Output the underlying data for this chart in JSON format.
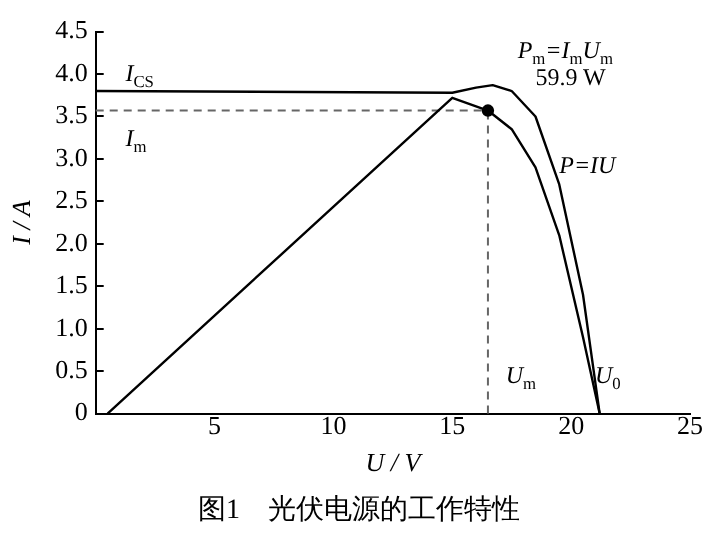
{
  "chart_data": {
    "type": "line",
    "title": "图1　光伏电源的工作特性",
    "xlabel": "U / V",
    "ylabel": "I / A",
    "xlim": [
      0,
      25
    ],
    "xticks": [
      5,
      10,
      15,
      20,
      25
    ],
    "ylim": [
      0,
      4.5
    ],
    "yticks": [
      0,
      0.5,
      {
        "value": 1,
        "label": "1.0"
      },
      1.5,
      {
        "value": 2,
        "label": "2.0"
      },
      2.5,
      {
        "value": 3,
        "label": "3.0"
      },
      3.5,
      {
        "value": 4,
        "label": "4.0"
      },
      4.5
    ],
    "grid": false,
    "legend": false,
    "marker": "none",
    "line_style": "solid",
    "series": [
      {
        "color": "#000000",
        "x": [
          0,
          15,
          16,
          16.7,
          17.5,
          18.5,
          19.5,
          20.5,
          21.2
        ],
        "values": [
          3.8,
          3.78,
          3.84,
          3.87,
          3.8,
          3.5,
          2.7,
          1.4,
          0
        ]
      },
      {
        "color": "#000000",
        "x": [
          0.5,
          15,
          16.5,
          17.5,
          18.5,
          19.5,
          20.5,
          21.2
        ],
        "values": [
          0,
          3.72,
          3.57,
          3.35,
          2.9,
          2.1,
          0.9,
          0
        ]
      },
      {
        "type": "scatter",
        "marker": "circle",
        "color": "#000000",
        "x": [
          16.5
        ],
        "values": [
          3.57
        ]
      }
    ],
    "ref_lines": [
      {
        "axis": "y",
        "value": 3.57,
        "color": "#666666",
        "line_style": "dashed"
      },
      {
        "axis": "x",
        "value": 16.5,
        "color": "#666666",
        "line_style": "dashed"
      }
    ],
    "annotations": [
      "I$_{CS}$",
      "I$_{m}$",
      "P$_{m}$=I$_{m}$U$_{m}$",
      "59.9 W",
      "P=IU",
      "U$_{m}$",
      "U$_{0}$"
    ]
  }
}
